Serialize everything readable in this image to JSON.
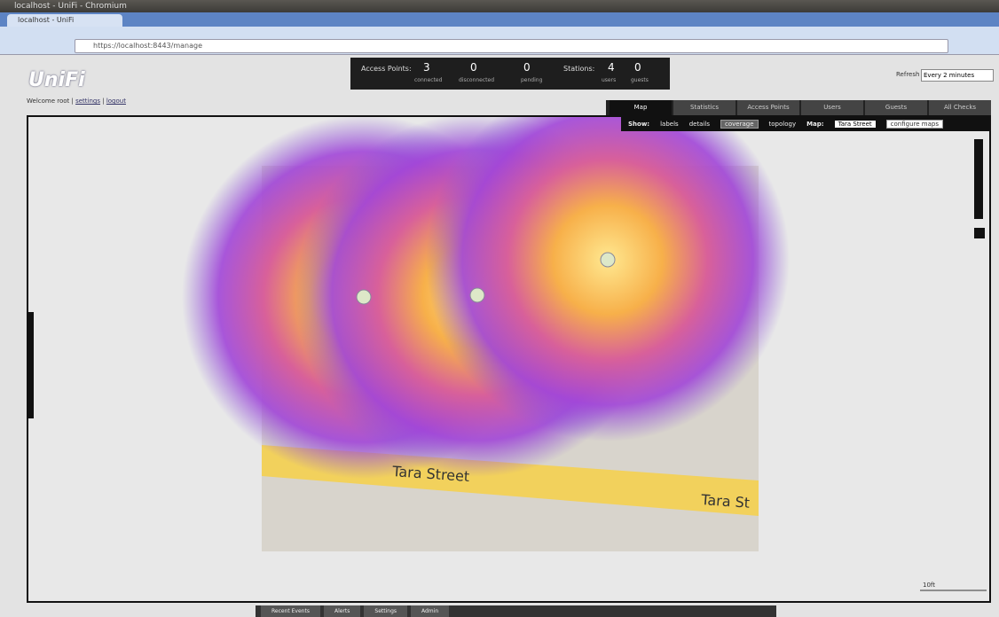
{
  "window": {
    "title": "localhost - UniFi - Chromium"
  },
  "browser": {
    "tab": "localhost - UniFi",
    "url": "https://localhost:8443/manage"
  },
  "header": {
    "logo": "UniFi",
    "welcome": "Welcome root",
    "settings": "settings",
    "logout": "logout",
    "refresh_label": "Refresh",
    "refresh_value": "Every 2 minutes"
  },
  "stats": {
    "access_points_label": "Access Points:",
    "connected": "3",
    "connected_label": "connected",
    "disconnected": "0",
    "disconnected_label": "disconnected",
    "pending": "0",
    "pending_label": "pending",
    "stations_label": "Stations:",
    "users": "4",
    "users_label": "users",
    "guests": "0",
    "guests_label": "guests"
  },
  "tabs": [
    "Map",
    "Statistics",
    "Access Points",
    "Users",
    "Guests",
    "All Checks"
  ],
  "map_toolbar": {
    "show_label": "Show:",
    "options": [
      "labels",
      "details",
      "coverage",
      "topology"
    ],
    "map_label": "Map:",
    "map_select": "Tara Street",
    "configure": "configure maps"
  },
  "map": {
    "street_labels": [
      "Tara Street",
      "Tara St"
    ],
    "scale": "10ft"
  },
  "bottom_bar": [
    "Recent Events",
    "Alerts",
    "Settings",
    "Admin"
  ]
}
